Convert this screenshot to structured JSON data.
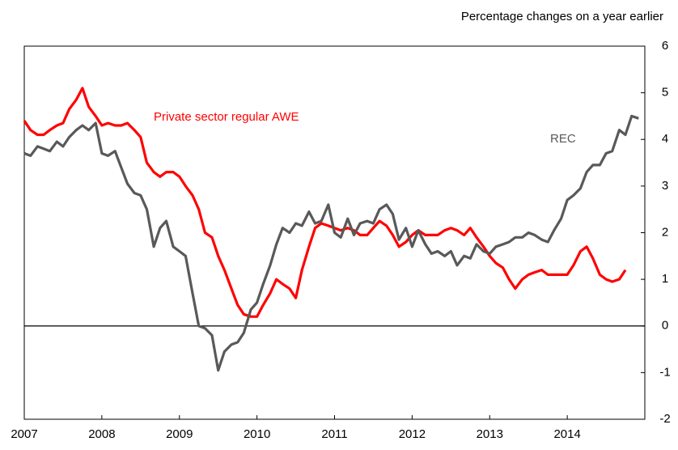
{
  "chart_data": {
    "type": "line",
    "title": "Percentage changes on a year earlier",
    "x": [
      2007,
      2007.08,
      2007.17,
      2007.25,
      2007.33,
      2007.42,
      2007.5,
      2007.58,
      2007.67,
      2007.75,
      2007.83,
      2007.92,
      2008,
      2008.08,
      2008.17,
      2008.25,
      2008.33,
      2008.42,
      2008.5,
      2008.58,
      2008.67,
      2008.75,
      2008.83,
      2008.92,
      2009,
      2009.08,
      2009.17,
      2009.25,
      2009.33,
      2009.42,
      2009.5,
      2009.58,
      2009.67,
      2009.75,
      2009.83,
      2009.92,
      2010,
      2010.08,
      2010.17,
      2010.25,
      2010.33,
      2010.42,
      2010.5,
      2010.58,
      2010.67,
      2010.75,
      2010.83,
      2010.92,
      2011,
      2011.08,
      2011.17,
      2011.25,
      2011.33,
      2011.42,
      2011.5,
      2011.58,
      2011.67,
      2011.75,
      2011.83,
      2011.92,
      2012,
      2012.08,
      2012.17,
      2012.25,
      2012.33,
      2012.42,
      2012.5,
      2012.58,
      2012.67,
      2012.75,
      2012.83,
      2012.92,
      2013,
      2013.08,
      2013.17,
      2013.25,
      2013.33,
      2013.42,
      2013.5,
      2013.58,
      2013.67,
      2013.75,
      2013.83,
      2013.92,
      2014,
      2014.08,
      2014.17,
      2014.25,
      2014.33,
      2014.42,
      2014.5,
      2014.58,
      2014.67,
      2014.75,
      2014.83,
      2014.92
    ],
    "series": [
      {
        "name": "Private sector regular AWE",
        "color": "#ff0000",
        "values": [
          4.4,
          4.2,
          4.1,
          4.1,
          4.2,
          4.3,
          4.35,
          4.65,
          4.85,
          5.1,
          4.7,
          4.5,
          4.3,
          4.35,
          4.3,
          4.3,
          4.35,
          4.2,
          4.05,
          3.5,
          3.3,
          3.2,
          3.3,
          3.3,
          3.2,
          3.0,
          2.8,
          2.5,
          2.0,
          1.9,
          1.5,
          1.2,
          0.8,
          0.45,
          0.25,
          0.2,
          0.2,
          0.45,
          0.7,
          1.0,
          0.9,
          0.8,
          0.6,
          1.2,
          1.7,
          2.1,
          2.2,
          2.15,
          2.1,
          2.05,
          2.1,
          2.05,
          1.95,
          1.95,
          2.1,
          2.25,
          2.15,
          1.95,
          1.7,
          1.8,
          1.95,
          2.05,
          1.95,
          1.95,
          1.95,
          2.05,
          2.1,
          2.05,
          1.95,
          2.1,
          1.9,
          1.7,
          1.5,
          1.35,
          1.25,
          1.0,
          0.8,
          1.0,
          1.1,
          1.15,
          1.2,
          1.1,
          1.1,
          1.1,
          1.1,
          1.3,
          1.6,
          1.7,
          1.45,
          1.1,
          1.0,
          0.95,
          1.0,
          1.2,
          null,
          null
        ]
      },
      {
        "name": "REC",
        "color": "#595959",
        "values": [
          3.7,
          3.65,
          3.85,
          3.8,
          3.75,
          3.95,
          3.85,
          4.05,
          4.2,
          4.3,
          4.2,
          4.35,
          3.7,
          3.65,
          3.75,
          3.4,
          3.05,
          2.85,
          2.8,
          2.5,
          1.7,
          2.1,
          2.25,
          1.7,
          1.6,
          1.5,
          0.7,
          0.0,
          -0.05,
          -0.2,
          -0.95,
          -0.55,
          -0.4,
          -0.35,
          -0.15,
          0.35,
          0.5,
          0.9,
          1.3,
          1.75,
          2.1,
          2.0,
          2.2,
          2.15,
          2.45,
          2.2,
          2.25,
          2.6,
          2.0,
          1.9,
          2.3,
          1.95,
          2.2,
          2.25,
          2.2,
          2.5,
          2.6,
          2.4,
          1.85,
          2.1,
          1.7,
          2.05,
          1.75,
          1.55,
          1.6,
          1.5,
          1.6,
          1.3,
          1.5,
          1.45,
          1.75,
          1.6,
          1.55,
          1.7,
          1.75,
          1.8,
          1.9,
          1.9,
          2.0,
          1.95,
          1.85,
          1.8,
          2.05,
          2.3,
          2.7,
          2.8,
          2.95,
          3.3,
          3.45,
          3.45,
          3.7,
          3.75,
          4.2,
          4.1,
          4.5,
          4.45
        ]
      }
    ],
    "xlim": [
      2007,
      2015
    ],
    "xticks": [
      2007,
      2008,
      2009,
      2010,
      2011,
      2012,
      2013,
      2014
    ],
    "ylim": [
      -2,
      6
    ],
    "yticks": [
      6,
      5,
      4,
      3,
      2,
      1,
      0,
      -1,
      -2
    ],
    "grid": false
  }
}
